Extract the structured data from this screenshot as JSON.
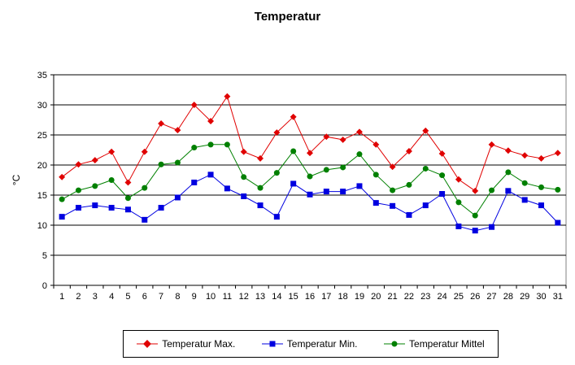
{
  "chart_data": {
    "type": "line",
    "title": "Temperatur",
    "xlabel": "",
    "ylabel": "°C",
    "ylim": [
      0,
      35
    ],
    "yticks": [
      0,
      5,
      10,
      15,
      20,
      25,
      30,
      35
    ],
    "grid": true,
    "legend_position": "bottom",
    "categories": [
      "1",
      "2",
      "3",
      "4",
      "5",
      "6",
      "7",
      "8",
      "9",
      "10",
      "11",
      "12",
      "13",
      "14",
      "15",
      "16",
      "17",
      "18",
      "19",
      "20",
      "21",
      "22",
      "23",
      "24",
      "25",
      "26",
      "27",
      "28",
      "29",
      "30",
      "31"
    ],
    "series": [
      {
        "name": "Temperatur Max.",
        "color": "#e00000",
        "marker": "diamond",
        "values": [
          18.0,
          20.1,
          20.8,
          22.2,
          17.1,
          22.2,
          26.9,
          25.8,
          30.0,
          27.3,
          31.4,
          22.2,
          21.1,
          25.4,
          28.0,
          22.0,
          24.7,
          24.2,
          25.5,
          23.4,
          19.7,
          22.3,
          25.7,
          21.9,
          17.6,
          15.7,
          23.4,
          22.4,
          21.6,
          21.1,
          22.0
        ]
      },
      {
        "name": "Temperatur Min.",
        "color": "#0000e0",
        "marker": "square",
        "values": [
          11.4,
          12.9,
          13.3,
          12.9,
          12.6,
          10.9,
          12.9,
          14.6,
          17.1,
          18.4,
          16.1,
          14.8,
          13.3,
          11.4,
          16.9,
          15.1,
          15.6,
          15.6,
          16.5,
          13.7,
          13.2,
          11.7,
          13.3,
          15.2,
          9.8,
          9.1,
          9.7,
          15.7,
          14.2,
          13.3,
          10.4
        ]
      },
      {
        "name": "Temperatur Mittel",
        "color": "#008000",
        "marker": "circle",
        "values": [
          14.3,
          15.8,
          16.5,
          17.5,
          14.5,
          16.2,
          20.1,
          20.4,
          22.9,
          23.4,
          23.4,
          18.0,
          16.2,
          18.7,
          22.3,
          18.1,
          19.2,
          19.6,
          21.8,
          18.4,
          15.8,
          16.7,
          19.4,
          18.3,
          13.8,
          11.6,
          15.8,
          18.8,
          17.0,
          16.3,
          15.9
        ]
      }
    ]
  }
}
